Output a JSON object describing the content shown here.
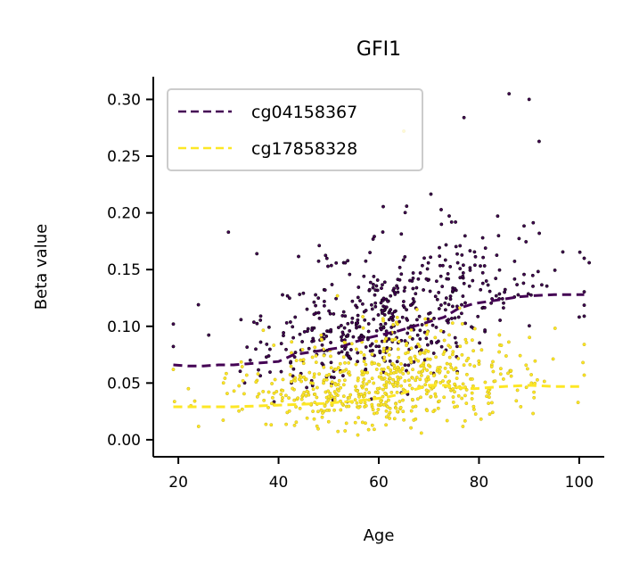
{
  "chart_data": {
    "type": "scatter",
    "title": "GFI1",
    "xlabel": "Age",
    "ylabel": "Beta value",
    "xlim": [
      15,
      105
    ],
    "ylim": [
      -0.015,
      0.32
    ],
    "x_ticks": [
      20,
      40,
      60,
      80,
      100
    ],
    "x_tick_labels": [
      "20",
      "40",
      "60",
      "80",
      "100"
    ],
    "y_ticks": [
      0.0,
      0.05,
      0.1,
      0.15,
      0.2,
      0.25,
      0.3
    ],
    "y_tick_labels": [
      "0.00",
      "0.05",
      "0.10",
      "0.15",
      "0.20",
      "0.25",
      "0.30"
    ],
    "grid": false,
    "legend_position": "top-left",
    "series": [
      {
        "name": "cg04158367",
        "color": "#440154",
        "line_style": "dashed",
        "trend": [
          [
            19,
            0.066
          ],
          [
            22,
            0.065
          ],
          [
            25,
            0.065
          ],
          [
            28,
            0.066
          ],
          [
            31,
            0.066
          ],
          [
            34,
            0.067
          ],
          [
            37,
            0.068
          ],
          [
            40,
            0.069
          ],
          [
            43,
            0.075
          ],
          [
            46,
            0.077
          ],
          [
            49,
            0.079
          ],
          [
            52,
            0.081
          ],
          [
            55,
            0.086
          ],
          [
            58,
            0.09
          ],
          [
            61,
            0.093
          ],
          [
            64,
            0.096
          ],
          [
            67,
            0.1
          ],
          [
            70,
            0.104
          ],
          [
            73,
            0.108
          ],
          [
            76,
            0.116
          ],
          [
            79,
            0.12
          ],
          [
            82,
            0.122
          ],
          [
            85,
            0.124
          ],
          [
            88,
            0.126
          ],
          [
            91,
            0.127
          ],
          [
            95,
            0.128
          ],
          [
            101,
            0.128
          ]
        ],
        "points": {
          "count": 520,
          "seed": 7,
          "age_range": [
            19,
            101
          ],
          "age_center": 64,
          "age_spread": 14,
          "noise_sd": 0.035,
          "min_value": 0.005,
          "extra": [
            [
              86,
              0.305
            ],
            [
              90,
              0.3
            ],
            [
              92,
              0.263
            ],
            [
              30,
              0.183
            ],
            [
              77,
              0.284
            ],
            [
              19,
              0.102
            ],
            [
              102,
              0.156
            ],
            [
              24,
              0.119
            ]
          ]
        }
      },
      {
        "name": "cg17858328",
        "color": "#fde725",
        "line_style": "dashed",
        "trend": [
          [
            19,
            0.029
          ],
          [
            25,
            0.029
          ],
          [
            31,
            0.029
          ],
          [
            37,
            0.03
          ],
          [
            43,
            0.031
          ],
          [
            49,
            0.032
          ],
          [
            55,
            0.034
          ],
          [
            61,
            0.037
          ],
          [
            64,
            0.04
          ],
          [
            67,
            0.044
          ],
          [
            70,
            0.048
          ],
          [
            73,
            0.048
          ],
          [
            76,
            0.046
          ],
          [
            79,
            0.045
          ],
          [
            82,
            0.046
          ],
          [
            85,
            0.047
          ],
          [
            90,
            0.048
          ],
          [
            95,
            0.047
          ],
          [
            101,
            0.047
          ]
        ],
        "points": {
          "count": 620,
          "seed": 19,
          "age_range": [
            19,
            101
          ],
          "age_center": 62,
          "age_spread": 14,
          "noise_sd": 0.027,
          "min_value": 0.0,
          "extra": [
            [
              65,
              0.272
            ],
            [
              19,
              0.062
            ],
            [
              101,
              0.084
            ],
            [
              22,
              0.045
            ]
          ]
        }
      }
    ]
  }
}
